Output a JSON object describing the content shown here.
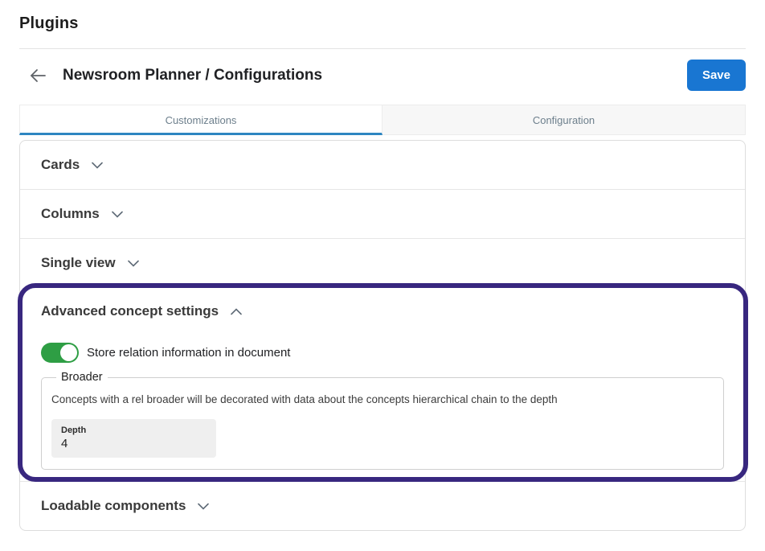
{
  "page": {
    "title": "Plugins"
  },
  "header": {
    "title": "Newsroom Planner / Configurations",
    "save_label": "Save"
  },
  "tabs": [
    {
      "label": "Customizations",
      "active": true
    },
    {
      "label": "Configuration",
      "active": false
    }
  ],
  "sections": {
    "cards": "Cards",
    "columns": "Columns",
    "single_view": "Single view",
    "advanced": "Advanced concept settings",
    "loadable": "Loadable components"
  },
  "advanced": {
    "toggle_label": "Store relation information in document",
    "toggle_on": true,
    "fieldset_legend": "Broader",
    "description": "Concepts with a rel broader will be decorated with data about the concepts hierarchical chain to the depth",
    "depth_label": "Depth",
    "depth_value": "4"
  },
  "icons": {
    "back": "arrow-left-icon",
    "collapsed": "chevron-down-icon",
    "expanded": "chevron-up-icon"
  },
  "colors": {
    "save_button": "#1976d2",
    "tab_underline": "#2e86c1",
    "toggle_on_green": "#2e9e44",
    "highlight_ring": "#38277f"
  }
}
